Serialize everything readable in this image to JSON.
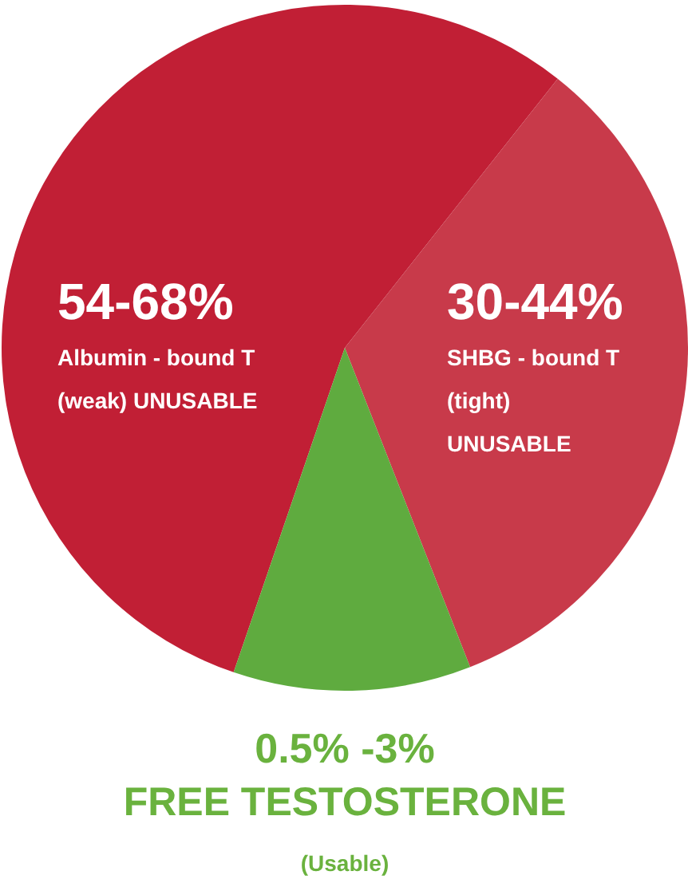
{
  "chart_data": {
    "type": "pie",
    "categories": [
      "Albumin - bound T (weak) UNUSABLE",
      "SHBG - bound T (tight) UNUSABLE",
      "FREE TESTOSTERONE"
    ],
    "values": [
      55.4,
      33.4,
      11.2
    ],
    "colors": [
      "#c11f35",
      "#c83a4a",
      "#5fab3f"
    ],
    "annotations": [
      "54-68%",
      "30-44%",
      "0.5% -3%",
      "(Usable)"
    ]
  }
}
